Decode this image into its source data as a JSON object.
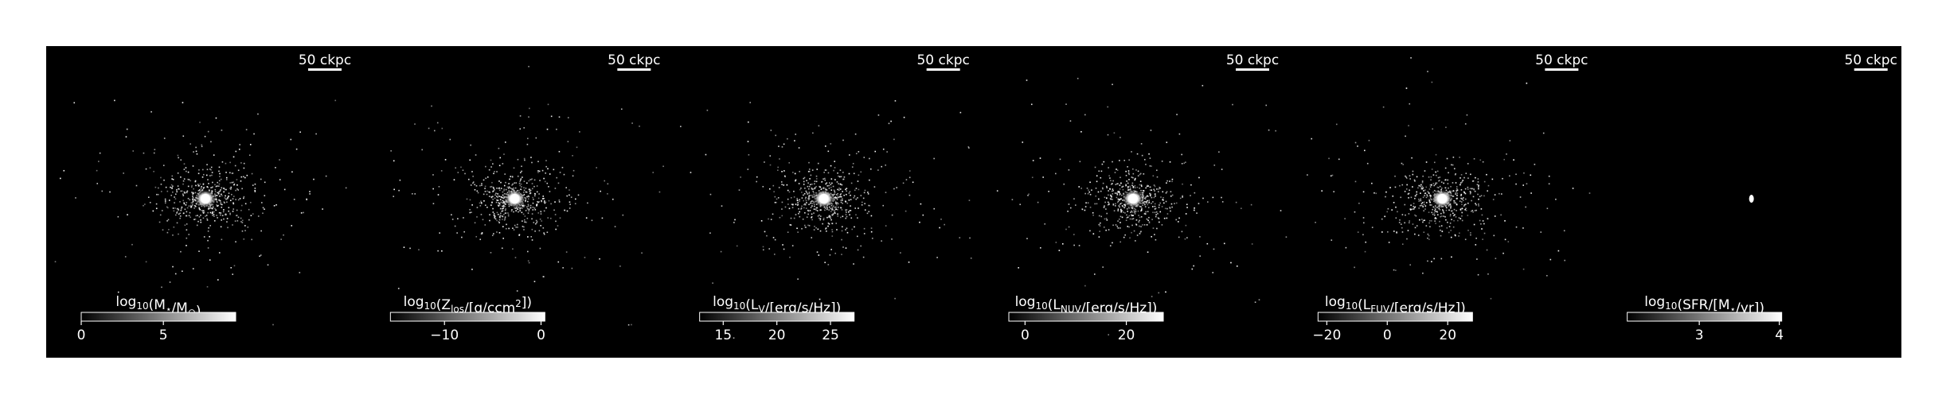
{
  "chart_data": [
    {
      "type": "image",
      "scalebar": "50 ckpc",
      "colorbar_label": [
        "log",
        {
          "text": "10",
          "script": "sub"
        },
        "(M",
        {
          "text": "⋆",
          "script": "sub"
        },
        "/M",
        {
          "text": "⊙",
          "script": "sub"
        },
        ")"
      ],
      "xlim": [
        0,
        9.4
      ],
      "xticks": [
        0,
        5
      ]
    },
    {
      "type": "image",
      "scalebar": "50 ckpc",
      "colorbar_label": [
        "log",
        {
          "text": "10",
          "script": "sub"
        },
        "(Z",
        {
          "text": "los",
          "script": "sub"
        },
        "/[g/ccm",
        {
          "text": "2",
          "script": "sup"
        },
        "])"
      ],
      "xlim": [
        -15.6,
        0.4
      ],
      "xticks": [
        {
          "value": -10,
          "label": "−10"
        },
        0
      ]
    },
    {
      "type": "image",
      "scalebar": "50 ckpc",
      "colorbar_label": [
        "log",
        {
          "text": "10",
          "script": "sub"
        },
        "(L",
        {
          "text": "V",
          "script": "sub"
        },
        "/[erg/s/Hz])"
      ],
      "xlim": [
        12.8,
        27.2
      ],
      "xticks": [
        15,
        20,
        25
      ]
    },
    {
      "type": "image",
      "scalebar": "50 ckpc",
      "colorbar_label": [
        "log",
        {
          "text": "10",
          "script": "sub"
        },
        "(L",
        {
          "text": "NUV",
          "script": "sub"
        },
        "/[erg/s/Hz])"
      ],
      "xlim": [
        -3.2,
        27.3
      ],
      "xticks": [
        0,
        20
      ]
    },
    {
      "type": "image",
      "scalebar": "50 ckpc",
      "colorbar_label": [
        "log",
        {
          "text": "10",
          "script": "sub"
        },
        "(L",
        {
          "text": "FUV",
          "script": "sub"
        },
        "/[erg/s/Hz])"
      ],
      "xlim": [
        -22.9,
        28.2
      ],
      "xticks": [
        {
          "value": -20,
          "label": "−20"
        },
        0,
        20
      ]
    },
    {
      "type": "image",
      "scalebar": "50 ckpc",
      "colorbar_label": [
        "log",
        {
          "text": "10",
          "script": "sub"
        },
        "(SFR/[M",
        {
          "text": "⋆",
          "script": "sub"
        },
        "/yr])"
      ],
      "xlim": [
        2.1,
        4.03
      ],
      "xticks": [
        3,
        4
      ]
    }
  ]
}
